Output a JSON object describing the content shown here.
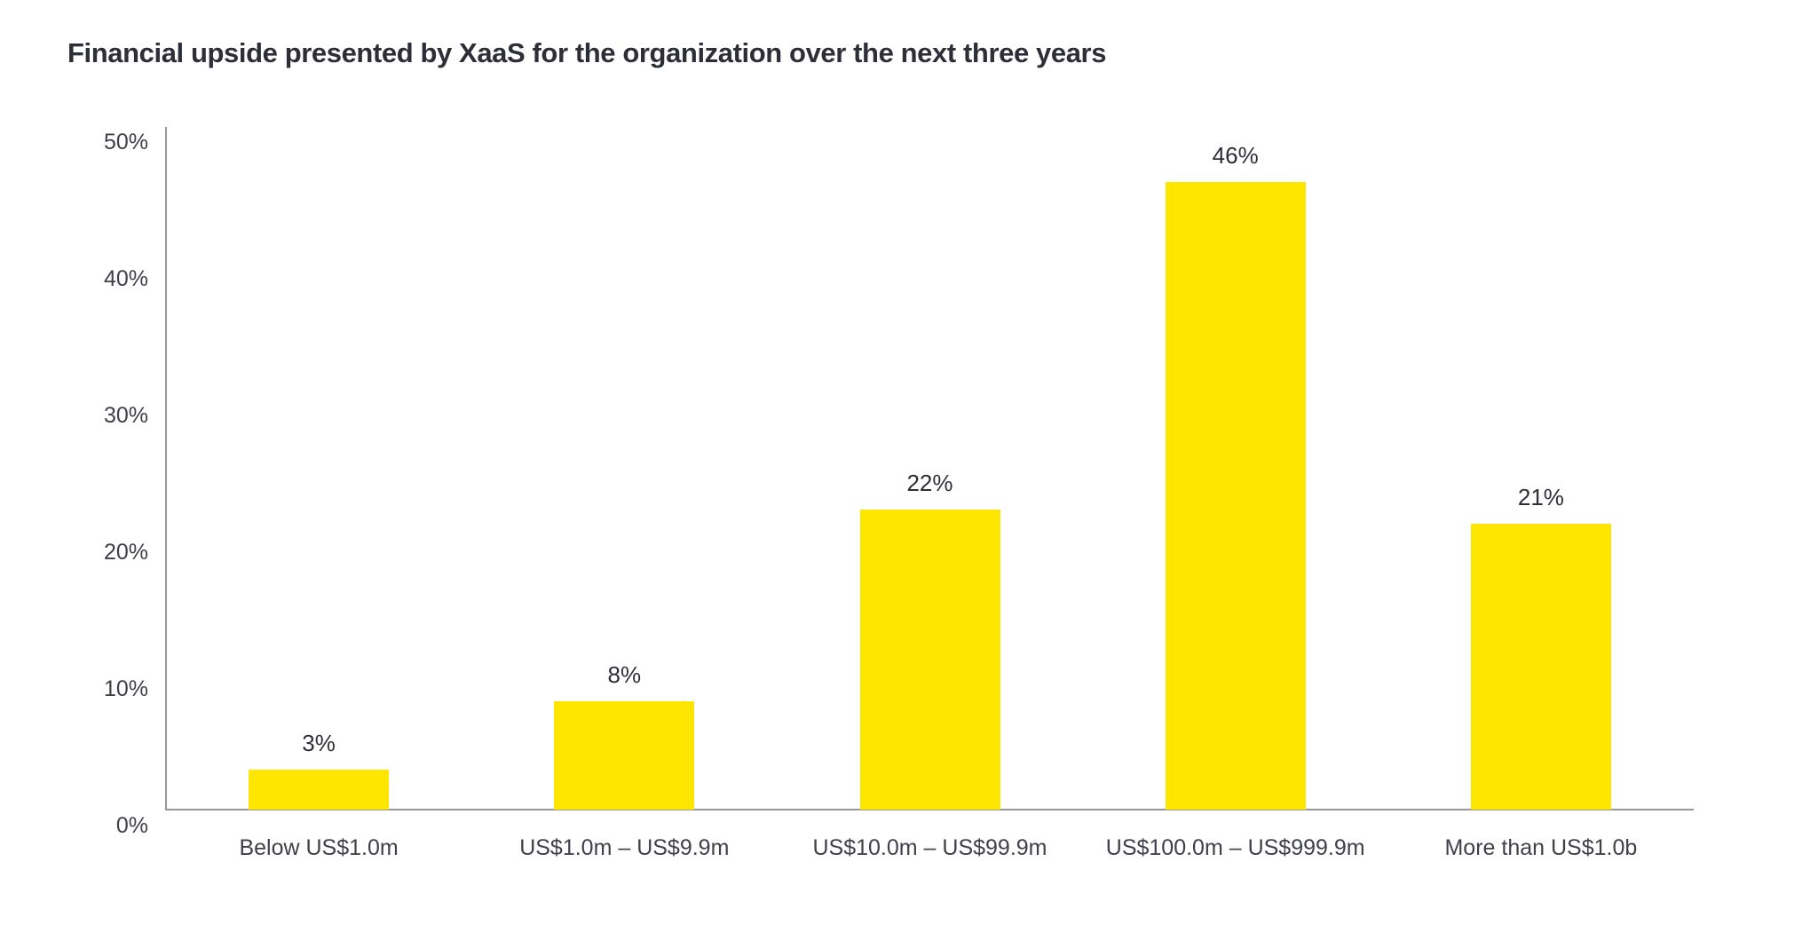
{
  "title": "Financial upside presented by XaaS for the organization over the next three years",
  "colors": {
    "bar": "#FFE600",
    "title_text": "#2E2E38",
    "axis_text": "#40404A",
    "axis_line": "#97979B",
    "background": "#FFFFFF"
  },
  "chart_data": {
    "type": "bar",
    "title": "Financial upside presented by XaaS for the organization over the next three years",
    "categories": [
      "Below US$1.0m",
      "US$1.0m – US$9.9m",
      "US$10.0m – US$99.9m",
      "US$100.0m – US$999.9m",
      "More than US$1.0b"
    ],
    "values": [
      3,
      8,
      22,
      46,
      21
    ],
    "data_labels": [
      "3%",
      "8%",
      "22%",
      "46%",
      "21%"
    ],
    "xlabel": "",
    "ylabel": "",
    "ylim": [
      0,
      50
    ],
    "yticks": [
      "0%",
      "10%",
      "20%",
      "30%",
      "40%",
      "50%"
    ],
    "grid": false,
    "legend": "none",
    "bar_color": "#FFE600"
  }
}
